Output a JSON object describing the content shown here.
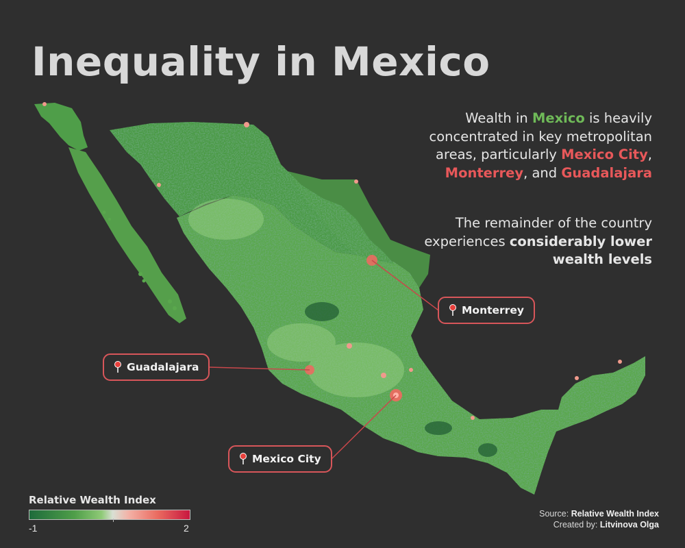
{
  "title": "Inequality in Mexico",
  "description": {
    "p1_a": "Wealth in ",
    "p1_country": "Mexico",
    "p1_b": " is heavily concentrated in key metropolitan areas, particularly ",
    "p1_city1": "Mexico City",
    "p1_c": ", ",
    "p1_city2": "Monterrey",
    "p1_d": ", and ",
    "p1_city3": "Guadalajara",
    "p2_a": "The remainder of the country experiences ",
    "p2_b": "considerably lower wealth levels"
  },
  "cities": {
    "monterrey": "Monterrey",
    "guadalajara": "Guadalajara",
    "mexico_city": "Mexico City"
  },
  "legend": {
    "title": "Relative Wealth  Index",
    "min": "-1",
    "max": "2"
  },
  "credits": {
    "source_label": "Source: ",
    "source_value": "Relative Wealth Index",
    "created_label": "Created by: ",
    "created_value": "Litvinova Olga"
  },
  "colors": {
    "background": "#2f2f2f",
    "low": "#1e6b3c",
    "mid_low": "#5aac4f",
    "mid": "#d9dfd4",
    "high": "#ea6b60",
    "max": "#c8173f",
    "callout_border": "#d8565a"
  }
}
